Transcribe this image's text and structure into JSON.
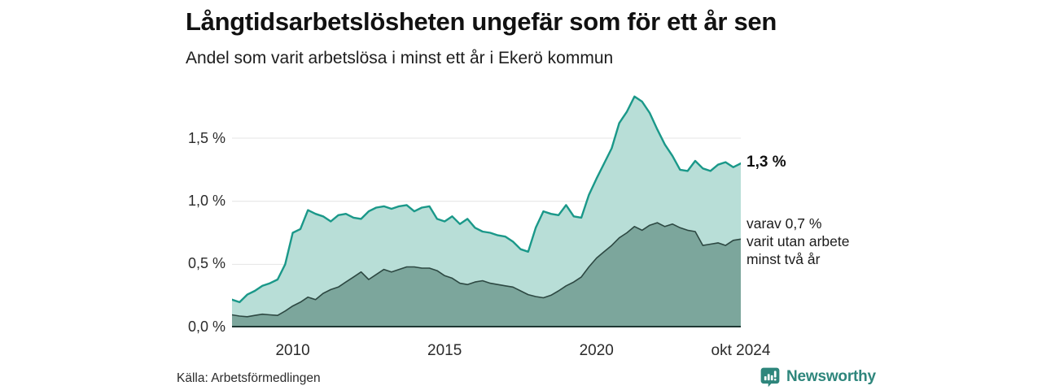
{
  "header": {
    "title": "Långtidsarbetslösheten ungefär som för ett år sen",
    "subtitle": "Andel som varit arbetslösa i minst ett år i Ekerö kommun"
  },
  "chart_data": {
    "type": "area",
    "title": "Långtidsarbetslösheten ungefär som för ett år sen",
    "subtitle": "Andel som varit arbetslösa i minst ett år i Ekerö kommun",
    "x_unit": "fractional_year",
    "xlim": [
      2008,
      2024.75
    ],
    "ylim": [
      0,
      1.9
    ],
    "grid": true,
    "x": [
      2008,
      2008.25,
      2008.5,
      2008.75,
      2009,
      2009.25,
      2009.5,
      2009.75,
      2010,
      2010.25,
      2010.5,
      2010.75,
      2011,
      2011.25,
      2011.5,
      2011.75,
      2012,
      2012.25,
      2012.5,
      2012.75,
      2013,
      2013.25,
      2013.5,
      2013.75,
      2014,
      2014.25,
      2014.5,
      2014.75,
      2015,
      2015.25,
      2015.5,
      2015.75,
      2016,
      2016.25,
      2016.5,
      2016.75,
      2017,
      2017.25,
      2017.5,
      2017.75,
      2018,
      2018.25,
      2018.5,
      2018.75,
      2019,
      2019.25,
      2019.5,
      2019.75,
      2020,
      2020.25,
      2020.5,
      2020.75,
      2021,
      2021.25,
      2021.5,
      2021.75,
      2022,
      2022.25,
      2022.5,
      2022.75,
      2023,
      2023.25,
      2023.5,
      2023.75,
      2024,
      2024.25,
      2024.5,
      2024.75
    ],
    "series": [
      {
        "name": "Arbetslösa minst ett år",
        "fill": "#b8ded7",
        "stroke": "#1a9889",
        "stroke_width": 2.4,
        "values": [
          0.22,
          0.2,
          0.26,
          0.29,
          0.33,
          0.35,
          0.38,
          0.5,
          0.75,
          0.78,
          0.93,
          0.9,
          0.88,
          0.84,
          0.89,
          0.9,
          0.87,
          0.86,
          0.92,
          0.95,
          0.96,
          0.94,
          0.96,
          0.97,
          0.92,
          0.95,
          0.96,
          0.86,
          0.84,
          0.88,
          0.82,
          0.86,
          0.79,
          0.76,
          0.75,
          0.73,
          0.72,
          0.68,
          0.62,
          0.6,
          0.79,
          0.92,
          0.9,
          0.89,
          0.97,
          0.88,
          0.87,
          1.05,
          1.18,
          1.3,
          1.42,
          1.62,
          1.71,
          1.83,
          1.79,
          1.7,
          1.57,
          1.45,
          1.36,
          1.25,
          1.24,
          1.32,
          1.26,
          1.24,
          1.29,
          1.31,
          1.27,
          1.3
        ]
      },
      {
        "name": "Utan arbete minst två år",
        "fill": "#7ca69c",
        "stroke": "#2d4842",
        "stroke_width": 1.6,
        "values": [
          0.1,
          0.09,
          0.085,
          0.095,
          0.105,
          0.1,
          0.095,
          0.13,
          0.17,
          0.2,
          0.24,
          0.22,
          0.27,
          0.3,
          0.32,
          0.36,
          0.4,
          0.44,
          0.38,
          0.42,
          0.46,
          0.44,
          0.46,
          0.48,
          0.48,
          0.47,
          0.47,
          0.45,
          0.41,
          0.39,
          0.35,
          0.34,
          0.36,
          0.37,
          0.35,
          0.34,
          0.33,
          0.32,
          0.29,
          0.26,
          0.245,
          0.235,
          0.255,
          0.29,
          0.33,
          0.36,
          0.4,
          0.48,
          0.55,
          0.6,
          0.65,
          0.71,
          0.75,
          0.8,
          0.77,
          0.81,
          0.83,
          0.8,
          0.82,
          0.79,
          0.77,
          0.76,
          0.65,
          0.66,
          0.67,
          0.65,
          0.69,
          0.7
        ]
      }
    ],
    "yticks": [
      "0,0 %",
      "0,5 %",
      "1,0 %",
      "1,5 %"
    ],
    "xticks": [
      {
        "label": "2010",
        "year": 2010
      },
      {
        "label": "2015",
        "year": 2015
      },
      {
        "label": "2020",
        "year": 2020
      },
      {
        "label": "okt 2024",
        "year": 2024.75
      }
    ],
    "end_labels": {
      "total": "1,3 %",
      "two_years_line1": "varav 0,7 %",
      "two_years_line2": "varit utan arbete",
      "two_years_line3": "minst två år"
    },
    "colors": {
      "gridline": "#e4e4e4",
      "baseline": "#1f3733"
    }
  },
  "footer": {
    "source": "Källa: Arbetsförmedlingen",
    "brand": "Newsworthy",
    "brand_color": "#2e867c"
  }
}
